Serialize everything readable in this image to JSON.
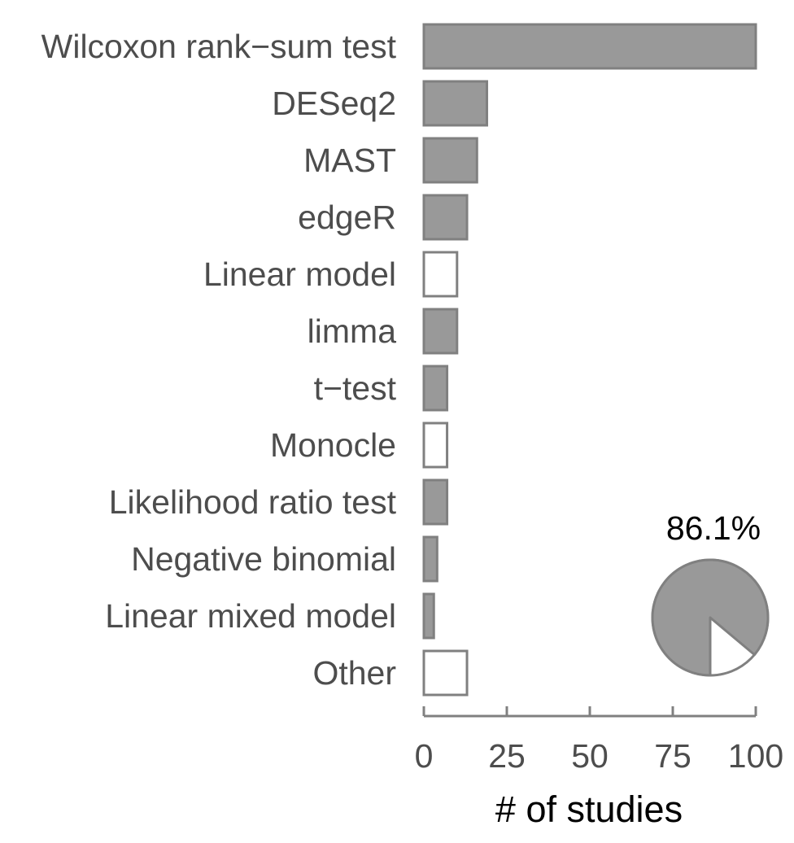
{
  "chart_data": {
    "type": "bar",
    "orientation": "horizontal",
    "categories": [
      "Wilcoxon rank−sum test",
      "DESeq2",
      "MAST",
      "edgeR",
      "Linear model",
      "limma",
      "t−test",
      "Monocle",
      "Likelihood ratio test",
      "Negative binomial",
      "Linear mixed model",
      "Other"
    ],
    "values": [
      100,
      19,
      16,
      13,
      10,
      10,
      7,
      7,
      7,
      4,
      3,
      13
    ],
    "filled": [
      true,
      true,
      true,
      true,
      false,
      true,
      true,
      false,
      true,
      true,
      true,
      false
    ],
    "xlabel": "# of studies",
    "ylabel": "",
    "xlim": [
      0,
      100
    ],
    "xticks": [
      "0",
      "25",
      "50",
      "75",
      "100"
    ],
    "grid": false,
    "inset_pie": {
      "type": "pie",
      "label": "86.1%",
      "values": [
        86.1,
        13.9
      ],
      "fills": [
        "filled",
        "empty"
      ]
    }
  },
  "colors": {
    "bar_fill": "#999999",
    "bar_stroke": "#808080",
    "empty_fill": "#ffffff",
    "label_text": "#4d4d4d",
    "axis": "#808080",
    "title_text": "#000000"
  }
}
